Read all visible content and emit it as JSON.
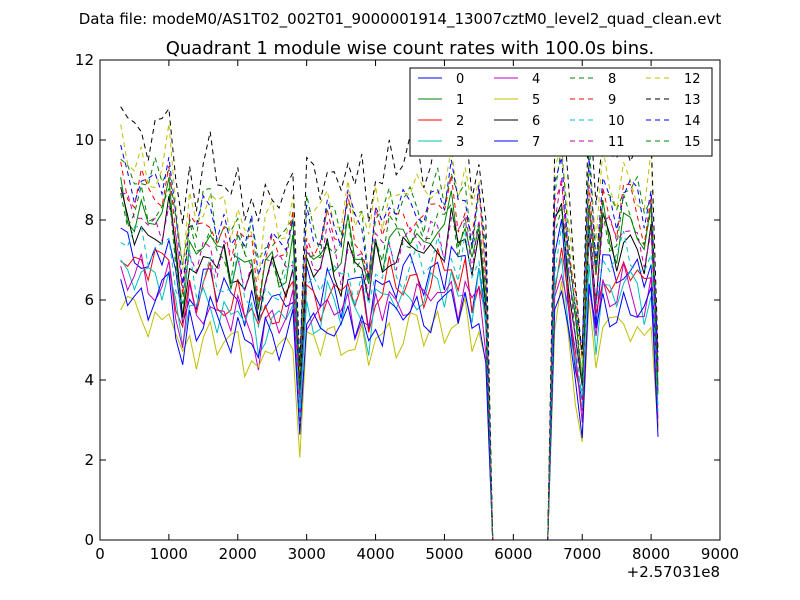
{
  "figure": {
    "suptitle": "Data file: modeM0/AS1T02_002T01_9000001914_13007cztM0_level2_quad_clean.evt",
    "offset_label": "+2.57031e8"
  },
  "chart_data": {
    "type": "line",
    "title": "Quadrant 1 module wise count rates with 100.0s bins.",
    "xlabel": "",
    "ylabel": "",
    "xlim": [
      0,
      9000
    ],
    "ylim": [
      0,
      12
    ],
    "x_offset": 257031000,
    "xticks": [
      0,
      1000,
      2000,
      3000,
      4000,
      5000,
      6000,
      7000,
      8000,
      9000
    ],
    "yticks": [
      0,
      2,
      4,
      6,
      8,
      10,
      12
    ],
    "grid": false,
    "legend": {
      "position": "top-right",
      "columns": 4
    },
    "x": [
      300,
      400,
      500,
      600,
      700,
      800,
      900,
      1000,
      1100,
      1200,
      1300,
      1400,
      1500,
      1600,
      1700,
      1800,
      1900,
      2000,
      2100,
      2200,
      2300,
      2400,
      2500,
      2600,
      2700,
      2800,
      2900,
      3000,
      3100,
      3200,
      3300,
      3400,
      3500,
      3600,
      3700,
      3800,
      3900,
      4000,
      4100,
      4200,
      4300,
      4400,
      4500,
      4600,
      4700,
      4800,
      4900,
      5000,
      5100,
      5200,
      5300,
      5400,
      5500,
      5600,
      5700,
      5800,
      5900,
      6000,
      6100,
      6200,
      6300,
      6400,
      6500,
      6600,
      6700,
      6800,
      6900,
      7000,
      7100,
      7200,
      7300,
      7400,
      7500,
      7600,
      7700,
      7800,
      7900,
      8000,
      8100
    ],
    "base_profile": [
      1.0,
      0.95,
      0.93,
      0.96,
      0.9,
      0.93,
      0.92,
      0.99,
      0.83,
      0.7,
      0.86,
      0.79,
      0.85,
      0.88,
      0.8,
      0.83,
      0.78,
      0.84,
      0.76,
      0.79,
      0.68,
      0.78,
      0.8,
      0.77,
      0.79,
      0.85,
      0.42,
      0.84,
      0.81,
      0.79,
      0.87,
      0.83,
      0.79,
      0.88,
      0.8,
      0.83,
      0.72,
      0.86,
      0.82,
      0.89,
      0.84,
      0.86,
      0.88,
      0.89,
      0.84,
      0.88,
      0.92,
      0.87,
      0.95,
      0.86,
      0.93,
      0.8,
      0.9,
      0.72,
      0.0,
      0.0,
      0.0,
      0.0,
      0.0,
      0.0,
      0.0,
      0.0,
      0.0,
      0.9,
      1.0,
      0.8,
      0.62,
      0.45,
      0.98,
      0.73,
      0.93,
      0.88,
      0.85,
      0.93,
      0.9,
      0.88,
      0.83,
      0.92,
      0.45
    ],
    "series": [
      {
        "name": "0",
        "color": "#0000ff",
        "dash": "solid",
        "level": 7.6
      },
      {
        "name": "1",
        "color": "#008000",
        "dash": "solid",
        "level": 8.7
      },
      {
        "name": "2",
        "color": "#ff0000",
        "dash": "solid",
        "level": 7.4
      },
      {
        "name": "3",
        "color": "#00bfbf",
        "dash": "solid",
        "level": 7.0
      },
      {
        "name": "4",
        "color": "#bf00bf",
        "dash": "solid",
        "level": 6.9
      },
      {
        "name": "5",
        "color": "#bfbf00",
        "dash": "solid",
        "level": 6.0
      },
      {
        "name": "6",
        "color": "#000000",
        "dash": "solid",
        "level": 8.3
      },
      {
        "name": "7",
        "color": "#0000ff",
        "dash": "solid",
        "level": 6.5
      },
      {
        "name": "8",
        "color": "#008000",
        "dash": "dashed",
        "level": 9.7
      },
      {
        "name": "9",
        "color": "#ff0000",
        "dash": "dashed",
        "level": 9.3
      },
      {
        "name": "10",
        "color": "#00bfbf",
        "dash": "dashed",
        "level": 7.9
      },
      {
        "name": "11",
        "color": "#bf00bf",
        "dash": "dashed",
        "level": 8.6
      },
      {
        "name": "12",
        "color": "#bfbf00",
        "dash": "dashed",
        "level": 10.0
      },
      {
        "name": "13",
        "color": "#000000",
        "dash": "dashed",
        "level": 11.0
      },
      {
        "name": "14",
        "color": "#0000ff",
        "dash": "dashed",
        "level": 9.6
      },
      {
        "name": "15",
        "color": "#008000",
        "dash": "dashed",
        "level": 8.8
      }
    ]
  }
}
